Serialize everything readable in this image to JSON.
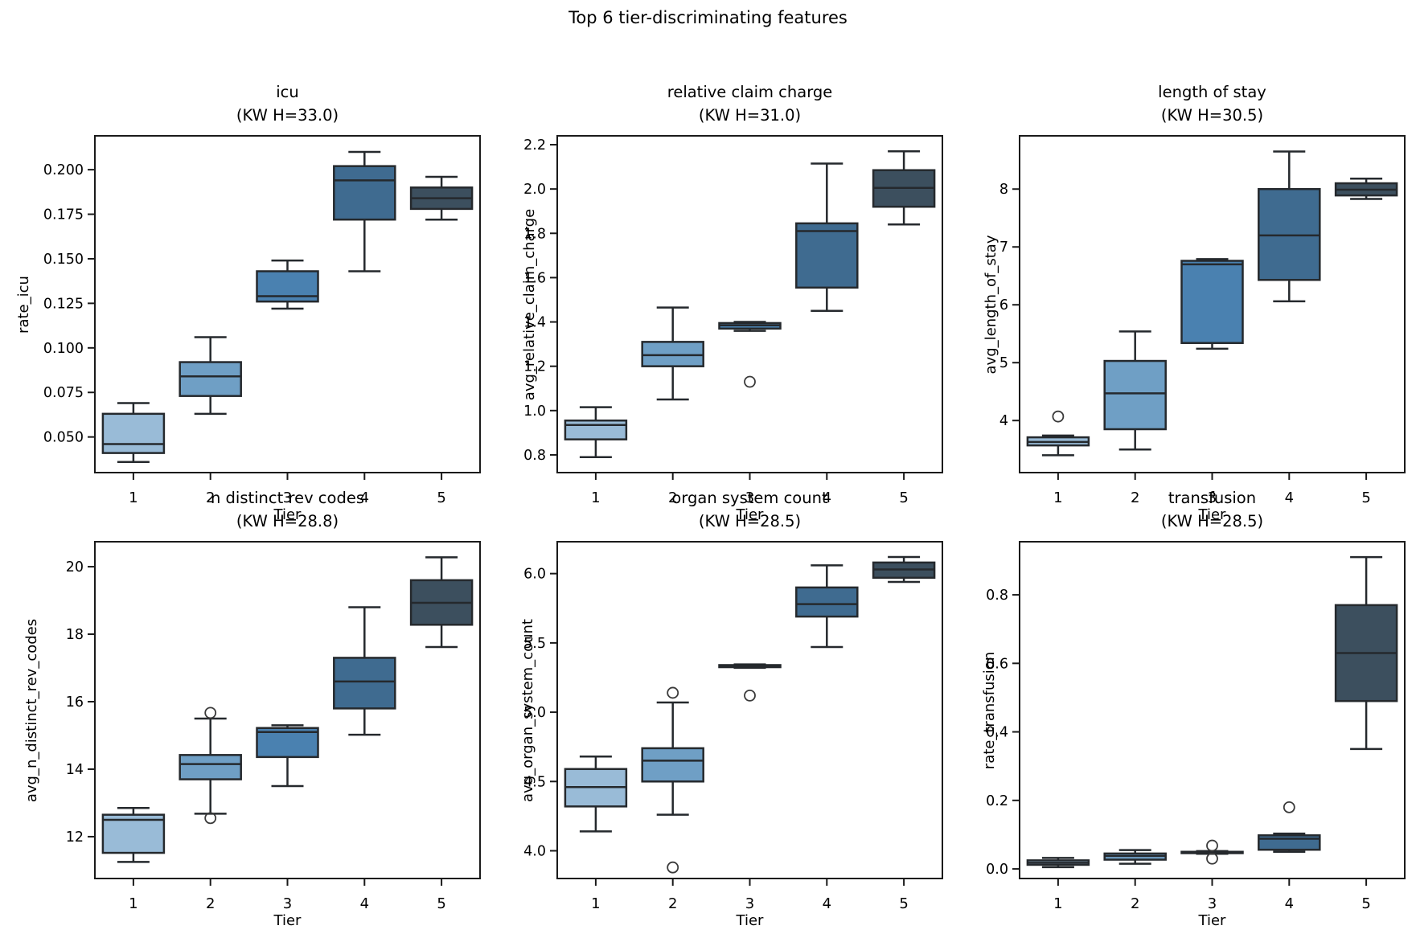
{
  "figure": {
    "title": "Top 6 tier-discriminating features"
  },
  "colors": {
    "tier_fills": [
      "#99bbd7",
      "#6f9fc5",
      "#4a81b0",
      "#3f6b90",
      "#3c4f5e"
    ],
    "box_edge": "#25292d",
    "spine": "#1a1a1a",
    "tick_text": "#000000",
    "flier_edge": "#3a3a3a",
    "background": "#ffffff"
  },
  "chart_data": {
    "type": "boxplot",
    "grid": [
      2,
      3
    ],
    "x_label": "Tier",
    "x_categories": [
      "1",
      "2",
      "3",
      "4",
      "5"
    ],
    "subplots": [
      {
        "title": "icu",
        "subtitle": "(KW H=33.0)",
        "kw_h": 33.0,
        "ylabel": "rate_icu",
        "ylim": [
          0.03,
          0.219
        ],
        "yticks": [
          0.05,
          0.075,
          0.1,
          0.125,
          0.15,
          0.175,
          0.2
        ],
        "ytick_labels": [
          "0.050",
          "0.075",
          "0.100",
          "0.125",
          "0.150",
          "0.175",
          "0.200"
        ],
        "boxes": [
          {
            "tier": 1,
            "whislo": 0.036,
            "q1": 0.041,
            "med": 0.046,
            "q3": 0.063,
            "whishi": 0.069,
            "fliers": []
          },
          {
            "tier": 2,
            "whislo": 0.063,
            "q1": 0.073,
            "med": 0.084,
            "q3": 0.092,
            "whishi": 0.106,
            "fliers": []
          },
          {
            "tier": 3,
            "whislo": 0.122,
            "q1": 0.126,
            "med": 0.129,
            "q3": 0.143,
            "whishi": 0.149,
            "fliers": []
          },
          {
            "tier": 4,
            "whislo": 0.143,
            "q1": 0.172,
            "med": 0.194,
            "q3": 0.202,
            "whishi": 0.21,
            "fliers": []
          },
          {
            "tier": 5,
            "whislo": 0.172,
            "q1": 0.178,
            "med": 0.184,
            "q3": 0.19,
            "whishi": 0.196,
            "fliers": []
          }
        ]
      },
      {
        "title": "relative claim charge",
        "subtitle": "(KW H=31.0)",
        "kw_h": 31.0,
        "ylabel": "avg_relative_claim_charge",
        "ylim": [
          0.72,
          2.24
        ],
        "yticks": [
          0.8,
          1.0,
          1.2,
          1.4,
          1.6,
          1.8,
          2.0,
          2.2
        ],
        "ytick_labels": [
          "0.8",
          "1.0",
          "1.2",
          "1.4",
          "1.6",
          "1.8",
          "2.0",
          "2.2"
        ],
        "boxes": [
          {
            "tier": 1,
            "whislo": 0.79,
            "q1": 0.87,
            "med": 0.935,
            "q3": 0.955,
            "whishi": 1.015,
            "fliers": []
          },
          {
            "tier": 2,
            "whislo": 1.05,
            "q1": 1.2,
            "med": 1.25,
            "q3": 1.31,
            "whishi": 1.465,
            "fliers": []
          },
          {
            "tier": 3,
            "whislo": 1.36,
            "q1": 1.37,
            "med": 1.385,
            "q3": 1.395,
            "whishi": 1.4,
            "fliers": [
              1.13
            ]
          },
          {
            "tier": 4,
            "whislo": 1.45,
            "q1": 1.555,
            "med": 1.81,
            "q3": 1.845,
            "whishi": 2.115,
            "fliers": []
          },
          {
            "tier": 5,
            "whislo": 1.84,
            "q1": 1.92,
            "med": 2.005,
            "q3": 2.085,
            "whishi": 2.17,
            "fliers": []
          }
        ]
      },
      {
        "title": "length of stay",
        "subtitle": "(KW H=30.5)",
        "kw_h": 30.5,
        "ylabel": "avg_length_of_stay",
        "ylim": [
          3.1,
          8.92
        ],
        "yticks": [
          4,
          5,
          6,
          7,
          8
        ],
        "ytick_labels": [
          "4",
          "5",
          "6",
          "7",
          "8"
        ],
        "boxes": [
          {
            "tier": 1,
            "whislo": 3.4,
            "q1": 3.57,
            "med": 3.63,
            "q3": 3.71,
            "whishi": 3.74,
            "fliers": [
              4.07
            ]
          },
          {
            "tier": 2,
            "whislo": 3.5,
            "q1": 3.85,
            "med": 4.47,
            "q3": 5.03,
            "whishi": 5.54,
            "fliers": []
          },
          {
            "tier": 3,
            "whislo": 5.24,
            "q1": 5.34,
            "med": 6.7,
            "q3": 6.76,
            "whishi": 6.79,
            "fliers": []
          },
          {
            "tier": 4,
            "whislo": 6.06,
            "q1": 6.43,
            "med": 7.2,
            "q3": 8.0,
            "whishi": 8.65,
            "fliers": []
          },
          {
            "tier": 5,
            "whislo": 7.83,
            "q1": 7.89,
            "med": 7.99,
            "q3": 8.1,
            "whishi": 8.18,
            "fliers": []
          }
        ]
      },
      {
        "title": "n distinct rev codes",
        "subtitle": "(KW H=28.8)",
        "kw_h": 28.8,
        "ylabel": "avg_n_distinct_rev_codes",
        "ylim": [
          10.76,
          20.74
        ],
        "yticks": [
          12,
          14,
          16,
          18,
          20
        ],
        "ytick_labels": [
          "12",
          "14",
          "16",
          "18",
          "20"
        ],
        "boxes": [
          {
            "tier": 1,
            "whislo": 11.25,
            "q1": 11.52,
            "med": 12.5,
            "q3": 12.65,
            "whishi": 12.85,
            "fliers": []
          },
          {
            "tier": 2,
            "whislo": 12.68,
            "q1": 13.7,
            "med": 14.15,
            "q3": 14.42,
            "whishi": 15.5,
            "fliers": [
              15.67,
              12.55
            ]
          },
          {
            "tier": 3,
            "whislo": 13.5,
            "q1": 14.36,
            "med": 15.1,
            "q3": 15.22,
            "whishi": 15.3,
            "fliers": []
          },
          {
            "tier": 4,
            "whislo": 15.02,
            "q1": 15.8,
            "med": 16.6,
            "q3": 17.3,
            "whishi": 18.8,
            "fliers": []
          },
          {
            "tier": 5,
            "whislo": 17.62,
            "q1": 18.28,
            "med": 18.93,
            "q3": 19.6,
            "whishi": 20.28,
            "fliers": []
          }
        ]
      },
      {
        "title": "organ system count",
        "subtitle": "(KW H=28.5)",
        "kw_h": 28.5,
        "ylabel": "avg_organ_system_count",
        "ylim": [
          3.8,
          6.23
        ],
        "yticks": [
          4.0,
          4.5,
          5.0,
          5.5,
          6.0
        ],
        "ytick_labels": [
          "4.0",
          "4.5",
          "5.0",
          "5.5",
          "6.0"
        ],
        "boxes": [
          {
            "tier": 1,
            "whislo": 4.14,
            "q1": 4.32,
            "med": 4.46,
            "q3": 4.59,
            "whishi": 4.68,
            "fliers": []
          },
          {
            "tier": 2,
            "whislo": 4.26,
            "q1": 4.5,
            "med": 4.65,
            "q3": 4.74,
            "whishi": 5.07,
            "fliers": [
              5.14,
              3.88
            ]
          },
          {
            "tier": 3,
            "whislo": 5.32,
            "q1": 5.325,
            "med": 5.33,
            "q3": 5.34,
            "whishi": 5.345,
            "fliers": [
              5.12
            ]
          },
          {
            "tier": 4,
            "whislo": 5.47,
            "q1": 5.69,
            "med": 5.78,
            "q3": 5.9,
            "whishi": 6.06,
            "fliers": []
          },
          {
            "tier": 5,
            "whislo": 5.94,
            "q1": 5.97,
            "med": 6.03,
            "q3": 6.08,
            "whishi": 6.12,
            "fliers": []
          }
        ]
      },
      {
        "title": "transfusion",
        "subtitle": "(KW H=28.5)",
        "kw_h": 28.5,
        "ylabel": "rate_transfusion",
        "ylim": [
          -0.028,
          0.955
        ],
        "yticks": [
          0.0,
          0.2,
          0.4,
          0.6,
          0.8
        ],
        "ytick_labels": [
          "0.0",
          "0.2",
          "0.4",
          "0.6",
          "0.8"
        ],
        "boxes": [
          {
            "tier": 1,
            "whislo": 0.005,
            "q1": 0.012,
            "med": 0.018,
            "q3": 0.025,
            "whishi": 0.032,
            "fliers": []
          },
          {
            "tier": 2,
            "whislo": 0.015,
            "q1": 0.027,
            "med": 0.038,
            "q3": 0.045,
            "whishi": 0.055,
            "fliers": []
          },
          {
            "tier": 3,
            "whislo": 0.044,
            "q1": 0.046,
            "med": 0.048,
            "q3": 0.05,
            "whishi": 0.052,
            "fliers": [
              0.068,
              0.03
            ]
          },
          {
            "tier": 4,
            "whislo": 0.05,
            "q1": 0.056,
            "med": 0.088,
            "q3": 0.098,
            "whishi": 0.103,
            "fliers": [
              0.18
            ]
          },
          {
            "tier": 5,
            "whislo": 0.35,
            "q1": 0.49,
            "med": 0.63,
            "q3": 0.77,
            "whishi": 0.91,
            "fliers": []
          }
        ]
      }
    ]
  }
}
